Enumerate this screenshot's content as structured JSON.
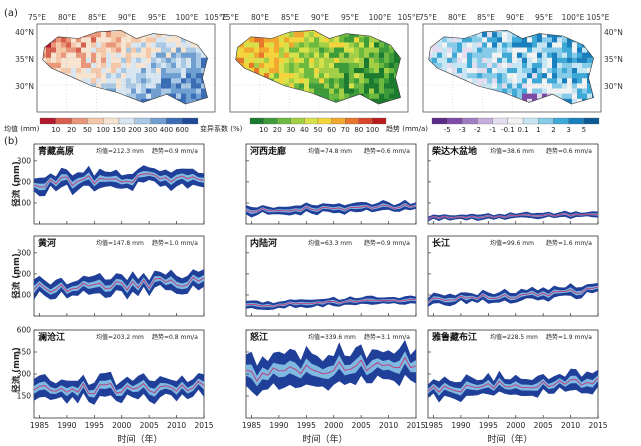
{
  "panel_labels": {
    "a": "(a)",
    "b": "(b)"
  },
  "maps": {
    "lon_ticks": [
      "75°E",
      "80°E",
      "85°E",
      "90°E",
      "95°E",
      "100°E",
      "105°E"
    ],
    "lat_ticks": [
      "40°N",
      "35°N",
      "30°N"
    ],
    "legends": [
      {
        "title": "均值 (mm)",
        "labels": [
          "10",
          "20",
          "50",
          "100",
          "150",
          "200",
          "300",
          "400",
          "600"
        ],
        "colors": [
          "#b2182b",
          "#d6604d",
          "#e9967a",
          "#f4c7a8",
          "#f7e4d0",
          "#d8e6f2",
          "#a9c8e4",
          "#6f9fd0",
          "#3a6db5",
          "#1f4a99"
        ]
      },
      {
        "title": "变异系数 (%)",
        "labels": [
          "10",
          "20",
          "30",
          "40",
          "50",
          "60",
          "70",
          "80",
          "100"
        ],
        "colors": [
          "#1a7a2e",
          "#3d9b3a",
          "#6cb93f",
          "#a2cf46",
          "#d7e24a",
          "#f3d43a",
          "#f2a72e",
          "#e7752a",
          "#d9452a",
          "#b81b1b"
        ]
      },
      {
        "title": "趋势 (mm/a)",
        "labels": [
          "-5",
          "-3",
          "-2",
          "-1",
          "-0.1",
          "0.1",
          "1",
          "2",
          "3",
          "5"
        ],
        "colors": [
          "#5b2a86",
          "#7d4ba6",
          "#a07dc2",
          "#c5aedb",
          "#e4dcef",
          "#f2f2f2",
          "#c6e6f3",
          "#86cbe8",
          "#3ea8d6",
          "#1a7fbf",
          "#0b5a94"
        ]
      }
    ]
  },
  "axes_text": {
    "xlabel": "时间（年）",
    "ylabel": "径流 (mm)",
    "x_ticks": [
      "1985",
      "1990",
      "1995",
      "2000",
      "2005",
      "2010",
      "2015"
    ],
    "row_y_ticks": [
      [
        "100",
        "200",
        "300"
      ],
      [
        "100",
        "200",
        "300"
      ],
      [
        "150",
        "300",
        "450",
        "600"
      ]
    ]
  },
  "colors": {
    "band_outer": "#1f3f99",
    "band_inner": "#7fb8e0",
    "mean_line": "#c0397a"
  },
  "chart_data": [
    {
      "type": "area",
      "title": "青藏高原",
      "mean_label": "均值=212.3 mm",
      "trend_label": "趋势=0.9 mm/a",
      "row": 0,
      "col": 0,
      "ylim": [
        0,
        380
      ],
      "x": [
        1984,
        2015
      ],
      "mean_value": 212.3,
      "trend": 0.9,
      "spread": 38,
      "var": 25
    },
    {
      "type": "area",
      "title": "河西走廊",
      "mean_label": "均值=74.8 mm",
      "trend_label": "趋势=0.6 mm/a",
      "row": 0,
      "col": 1,
      "ylim": [
        0,
        380
      ],
      "x": [
        1984,
        2015
      ],
      "mean_value": 74.8,
      "trend": 0.6,
      "spread": 20,
      "var": 10
    },
    {
      "type": "area",
      "title": "柴达木盆地",
      "mean_label": "均值=38.6 mm",
      "trend_label": "趋势=0.6 mm/a",
      "row": 0,
      "col": 2,
      "ylim": [
        0,
        380
      ],
      "x": [
        1984,
        2015
      ],
      "mean_value": 38.6,
      "trend": 0.6,
      "spread": 12,
      "var": 6
    },
    {
      "type": "area",
      "title": "黄河",
      "mean_label": "均值=147.8 mm",
      "trend_label": "趋势=1.0 mm/a",
      "row": 1,
      "col": 0,
      "ylim": [
        0,
        380
      ],
      "x": [
        1984,
        2015
      ],
      "mean_value": 147.8,
      "trend": 1.0,
      "spread": 40,
      "var": 25
    },
    {
      "type": "area",
      "title": "内陆河",
      "mean_label": "均值=63.3 mm",
      "trend_label": "趋势=0.9 mm/a",
      "row": 1,
      "col": 1,
      "ylim": [
        0,
        380
      ],
      "x": [
        1984,
        2015
      ],
      "mean_value": 63.3,
      "trend": 0.9,
      "spread": 18,
      "var": 8
    },
    {
      "type": "area",
      "title": "长江",
      "mean_label": "均值=99.6 mm",
      "trend_label": "趋势=1.6 mm/a",
      "row": 1,
      "col": 2,
      "ylim": [
        0,
        380
      ],
      "x": [
        1984,
        2015
      ],
      "mean_value": 99.6,
      "trend": 1.6,
      "spread": 24,
      "var": 14
    },
    {
      "type": "area",
      "title": "澜沧江",
      "mean_label": "均值=203.2 mm",
      "trend_label": "趋势=0.8 mm/a",
      "row": 2,
      "col": 0,
      "ylim": [
        0,
        600
      ],
      "x": [
        1984,
        2015
      ],
      "mean_value": 203.2,
      "trend": 0.8,
      "spread": 65,
      "var": 40
    },
    {
      "type": "area",
      "title": "怒江",
      "mean_label": "均值=339.6 mm",
      "trend_label": "趋势=3.1 mm/a",
      "row": 2,
      "col": 1,
      "ylim": [
        0,
        600
      ],
      "x": [
        1984,
        2015
      ],
      "mean_value": 339.6,
      "trend": 3.1,
      "spread": 110,
      "var": 45
    },
    {
      "type": "area",
      "title": "雅鲁藏布江",
      "mean_label": "均值=228.5 mm",
      "trend_label": "趋势=1.9 mm/a",
      "row": 2,
      "col": 2,
      "ylim": [
        0,
        600
      ],
      "x": [
        1984,
        2015
      ],
      "mean_value": 228.5,
      "trend": 1.9,
      "spread": 60,
      "var": 35
    }
  ]
}
